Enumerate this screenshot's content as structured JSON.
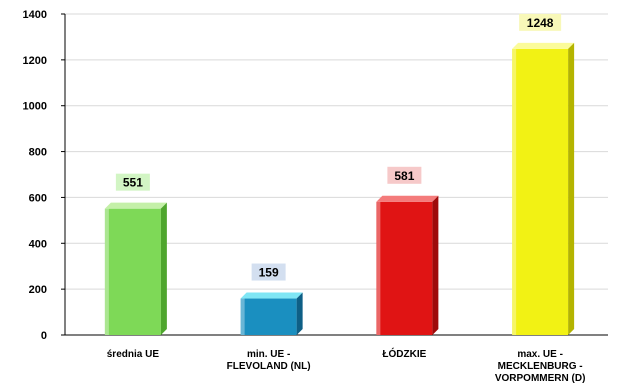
{
  "chart_data": {
    "type": "bar",
    "categories": [
      [
        "średnia UE"
      ],
      [
        "min. UE -",
        "FLEVOLAND (NL)"
      ],
      [
        "ŁÓDZKIE"
      ],
      [
        "max. UE -",
        "MECKLENBURG -",
        "VORPOMMERN (D)"
      ]
    ],
    "values": [
      551,
      159,
      581,
      1248
    ],
    "value_labels": [
      "551",
      "159",
      "581",
      "1248"
    ],
    "ylim": [
      0,
      1400
    ],
    "yticks": [
      0,
      200,
      400,
      600,
      800,
      1000,
      1200,
      1400
    ],
    "grid": "horizontal",
    "title": "",
    "xlabel": "",
    "ylabel": "",
    "bar_colors": [
      {
        "front": "#7ed957",
        "top": "#c4f0a8",
        "side": "#4fa62e",
        "label_bg": "#d2f5c4"
      },
      {
        "front": "#1a8fc0",
        "top": "#7fe6f5",
        "side": "#0e5f86",
        "label_bg": "#d3dff0"
      },
      {
        "front": "#e01414",
        "top": "#f47b7b",
        "side": "#9e0a0a",
        "label_bg": "#f6c9c9"
      },
      {
        "front": "#f2f214",
        "top": "#fbfb9a",
        "side": "#b4b400",
        "label_bg": "#f8f8b8"
      }
    ]
  }
}
